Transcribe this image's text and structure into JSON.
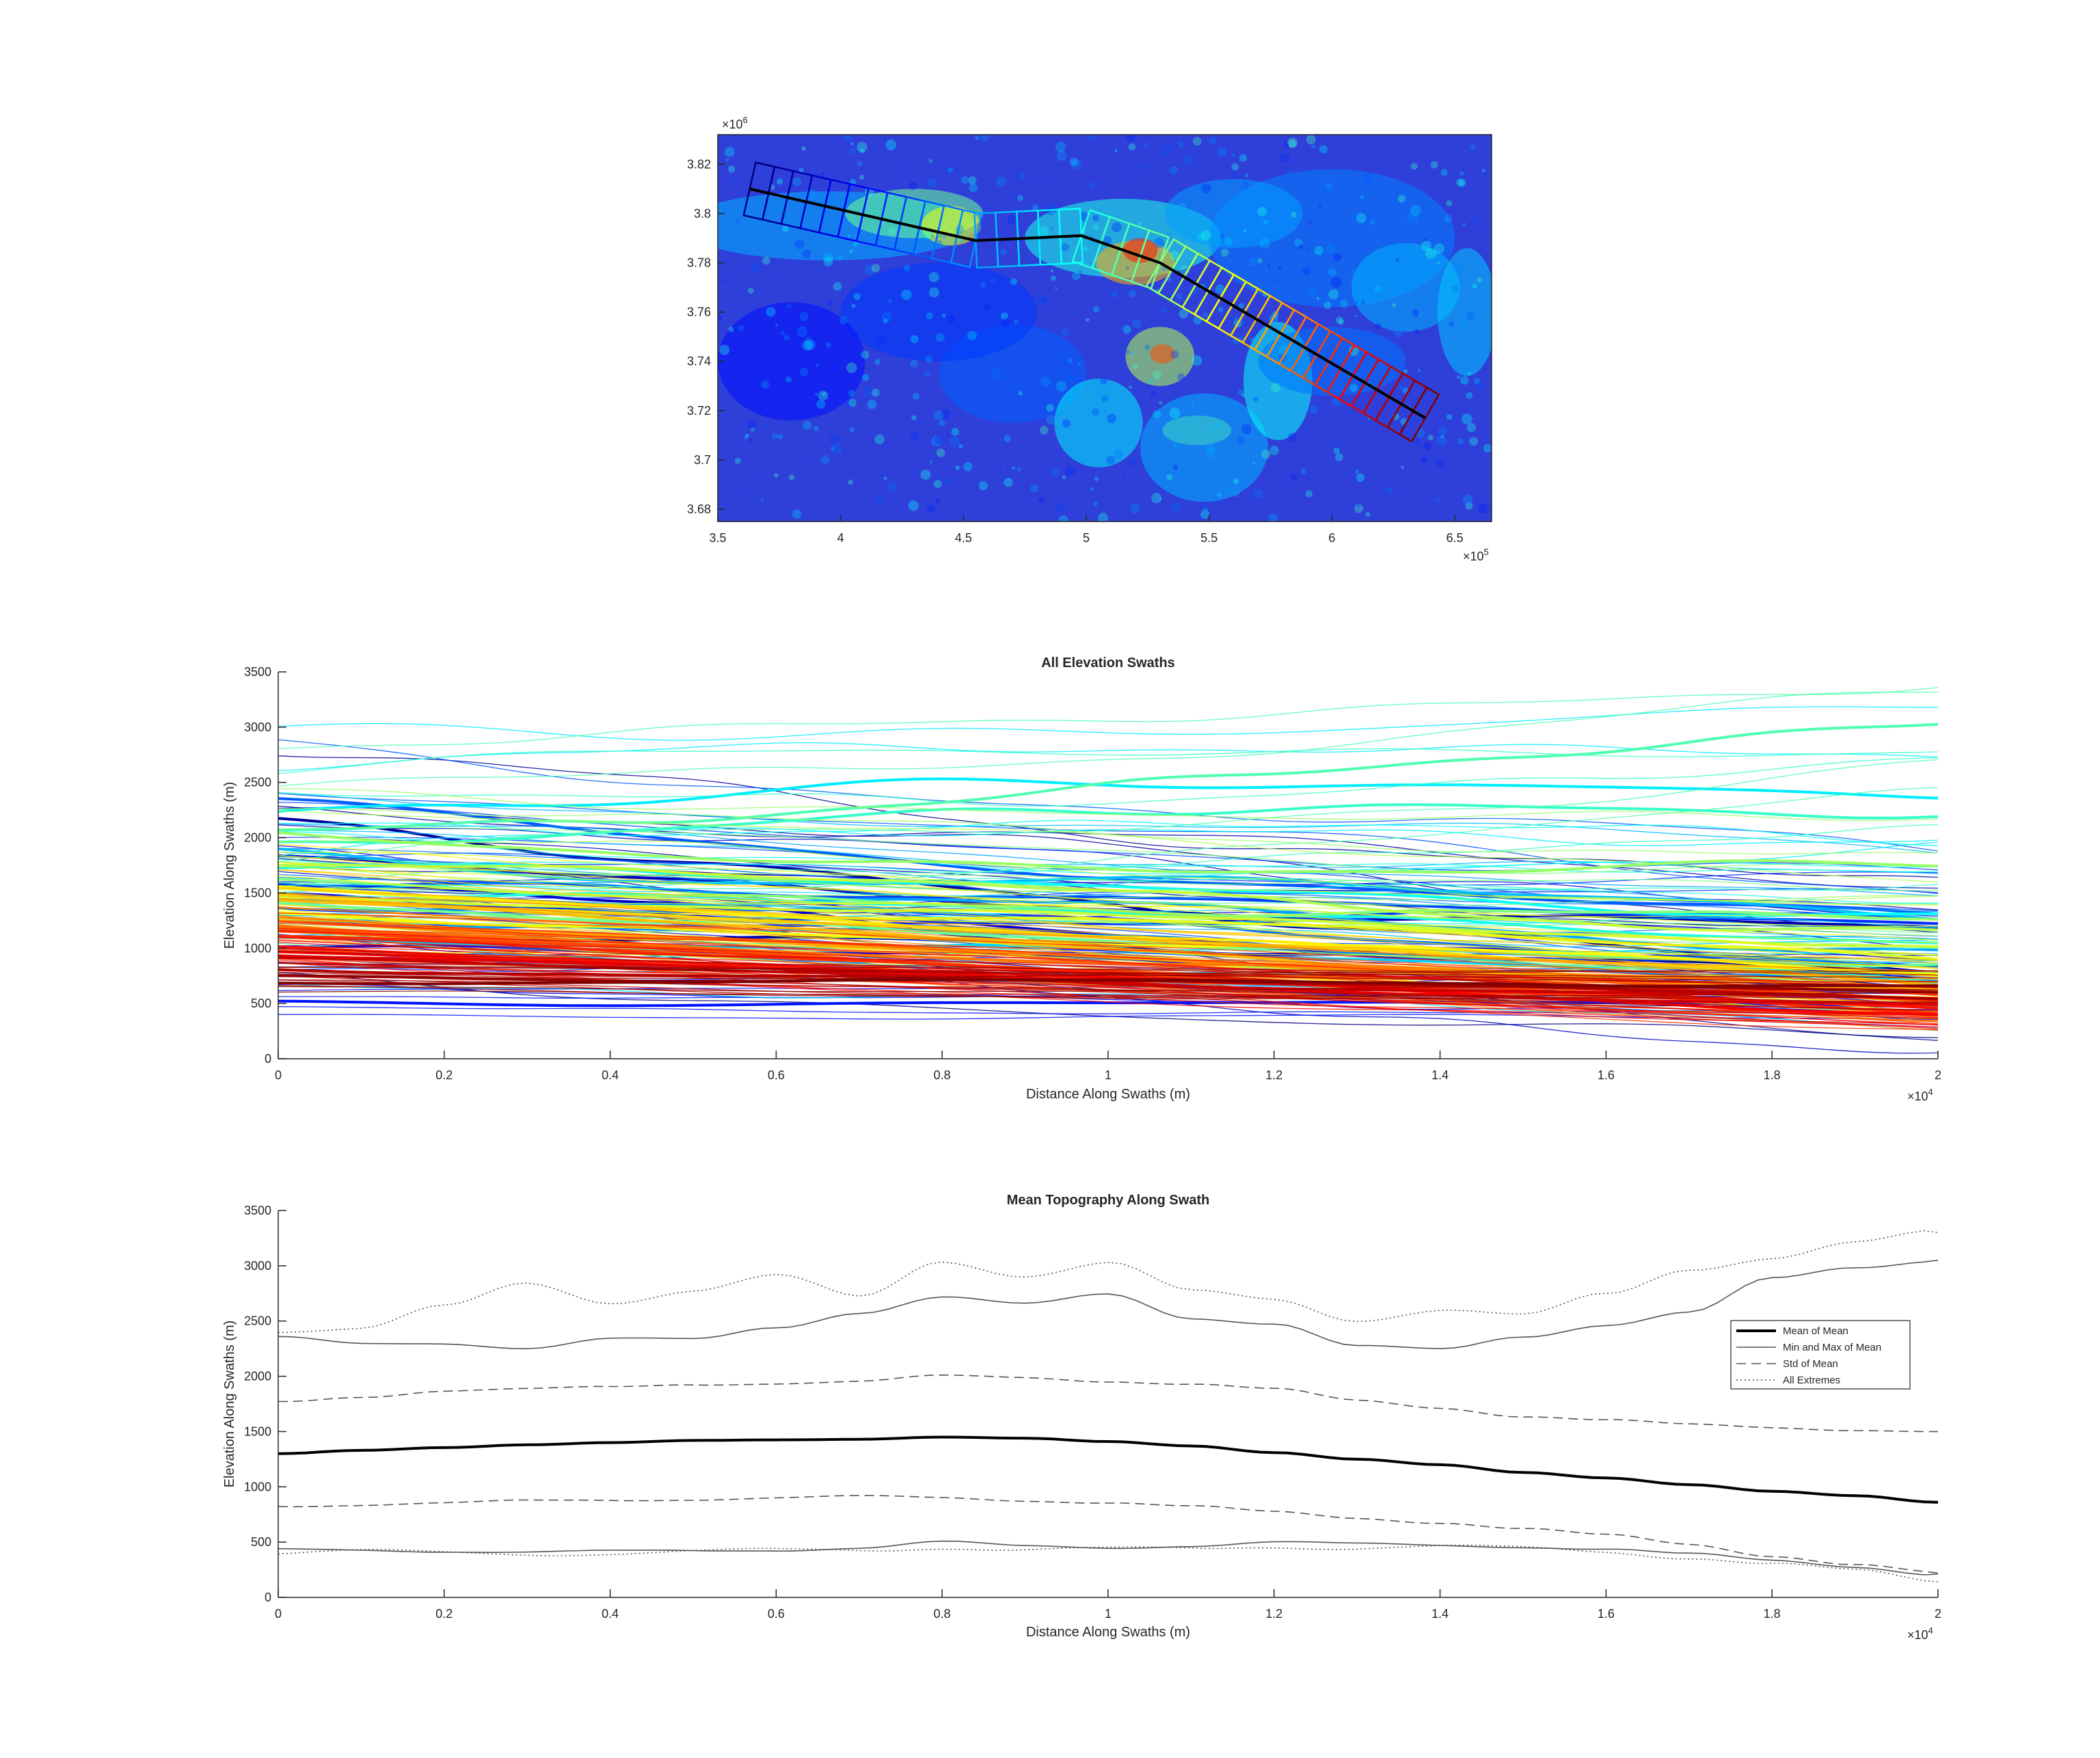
{
  "chart_data": [
    {
      "type": "heatmap",
      "subtype": "elevation-map-with-swath-boxes",
      "xlim": [
        350000,
        665000
      ],
      "ylim": [
        3675000,
        3832000
      ],
      "x_ticks": [
        "3.5",
        "4",
        "4.5",
        "5",
        "5.5",
        "6",
        "6.5"
      ],
      "y_ticks": [
        "3.68",
        "3.7",
        "3.72",
        "3.74",
        "3.76",
        "3.78",
        "3.8",
        "3.82"
      ],
      "x_exponent": "5",
      "y_exponent": "6",
      "colormap": "jet",
      "swath_centerline": [
        [
          363000,
          3810000
        ],
        [
          455000,
          3789000
        ],
        [
          498000,
          3791000
        ],
        [
          530000,
          3780000
        ],
        [
          638000,
          3717000
        ]
      ],
      "swath_boxes_per_segment": [
        12,
        5,
        4,
        22
      ],
      "swath_half_width": 11000
    },
    {
      "type": "line",
      "title": "All Elevation Swaths",
      "xlabel": "Distance Along Swaths (m)",
      "ylabel": "Elevation Along Swaths (m)",
      "xlim": [
        0,
        20000
      ],
      "ylim": [
        0,
        3500
      ],
      "x_ticks": [
        "0",
        "0.2",
        "0.4",
        "0.6",
        "0.8",
        "1",
        "1.2",
        "1.4",
        "1.6",
        "1.8",
        "2"
      ],
      "y_ticks": [
        "0",
        "500",
        "1000",
        "1500",
        "2000",
        "2500",
        "3000",
        "3500"
      ],
      "x_exponent": "4",
      "series_count": 43,
      "series_colormap": "jet",
      "series_mean_start": [
        1250,
        2050,
        1800,
        1520,
        1380,
        1060,
        520,
        1300,
        1700,
        2220,
        1420,
        1280,
        1550,
        1850,
        1120,
        2250,
        1650,
        1440,
        1990,
        2100,
        1360,
        1610,
        1940,
        1750,
        1450,
        1560,
        1350,
        1600,
        1530,
        1410,
        1300,
        1250,
        1210,
        1160,
        1130,
        1080,
        1040,
        990,
        930,
        890,
        830,
        760,
        700
      ],
      "series_mean_end": [
        700,
        900,
        1100,
        760,
        820,
        640,
        480,
        1200,
        1150,
        1220,
        900,
        780,
        1050,
        1300,
        700,
        2500,
        1400,
        1150,
        2300,
        2900,
        900,
        1250,
        1650,
        1200,
        1000,
        900,
        760,
        700,
        650,
        600,
        560,
        520,
        540,
        500,
        480,
        450,
        430,
        420,
        470,
        520,
        560,
        620,
        680
      ],
      "series_spread": [
        500,
        650,
        500,
        600,
        500,
        350,
        120,
        450,
        500,
        600,
        450,
        400,
        500,
        550,
        380,
        700,
        550,
        450,
        600,
        600,
        400,
        450,
        500,
        450,
        350,
        300,
        300,
        280,
        260,
        250,
        240,
        230,
        220,
        200,
        190,
        180,
        170,
        160,
        150,
        140,
        130,
        120,
        110
      ]
    },
    {
      "type": "line",
      "title": "Mean Topography Along Swath",
      "xlabel": "Distance Along Swaths (m)",
      "ylabel": "Elevation Along Swaths (m)",
      "xlim": [
        0,
        20000
      ],
      "ylim": [
        0,
        3500
      ],
      "x_ticks": [
        "0",
        "0.2",
        "0.4",
        "0.6",
        "0.8",
        "1",
        "1.2",
        "1.4",
        "1.6",
        "1.8",
        "2"
      ],
      "y_ticks": [
        "0",
        "500",
        "1000",
        "1500",
        "2000",
        "2500",
        "3000",
        "3500"
      ],
      "x_exponent": "4",
      "legend_position": "right",
      "x": [
        0,
        1000,
        2000,
        3000,
        4000,
        5000,
        6000,
        7000,
        8000,
        9000,
        10000,
        11000,
        12000,
        13000,
        14000,
        15000,
        16000,
        17000,
        18000,
        19000,
        20000
      ],
      "series": [
        {
          "name": "Mean of Mean",
          "style": "solid-thick",
          "values": [
            1300,
            1330,
            1355,
            1380,
            1400,
            1420,
            1425,
            1430,
            1450,
            1440,
            1410,
            1370,
            1310,
            1250,
            1200,
            1130,
            1080,
            1020,
            960,
            920,
            860
          ]
        },
        {
          "name": "Min and Max of Mean",
          "style": "solid",
          "values": [
            2350,
            2290,
            2300,
            2260,
            2340,
            2330,
            2440,
            2580,
            2720,
            2650,
            2740,
            2530,
            2480,
            2270,
            2240,
            2360,
            2470,
            2580,
            2880,
            2980,
            3050
          ]
        },
        {
          "name": "Min and Max of Mean (min)",
          "style": "solid",
          "values": [
            430,
            430,
            420,
            410,
            415,
            420,
            430,
            450,
            500,
            460,
            450,
            470,
            500,
            480,
            470,
            460,
            440,
            390,
            330,
            280,
            210
          ]
        },
        {
          "name": "Std of Mean",
          "style": "dashed",
          "values": [
            1770,
            1820,
            1870,
            1880,
            1900,
            1930,
            1940,
            1950,
            2000,
            1990,
            1960,
            1930,
            1880,
            1780,
            1720,
            1640,
            1600,
            1560,
            1540,
            1520,
            1500
          ]
        },
        {
          "name": "Std of Mean (lower)",
          "style": "dashed",
          "values": [
            830,
            840,
            850,
            870,
            880,
            890,
            900,
            910,
            900,
            880,
            860,
            820,
            770,
            720,
            680,
            620,
            560,
            480,
            380,
            300,
            220
          ]
        },
        {
          "name": "All Extremes",
          "style": "dotted",
          "values": [
            2420,
            2430,
            2620,
            2840,
            2680,
            2780,
            2900,
            2710,
            3050,
            2920,
            3020,
            2760,
            2700,
            2520,
            2600,
            2540,
            2740,
            2980,
            3080,
            3200,
            3300
          ]
        },
        {
          "name": "All Extremes (min)",
          "style": "dotted",
          "values": [
            400,
            410,
            400,
            400,
            405,
            410,
            420,
            430,
            460,
            430,
            430,
            440,
            470,
            450,
            450,
            440,
            420,
            370,
            300,
            230,
            140
          ]
        }
      ],
      "legend_entries": [
        "Mean of Mean",
        "Min and Max of Mean",
        "Std of Mean",
        "All Extremes"
      ]
    }
  ]
}
